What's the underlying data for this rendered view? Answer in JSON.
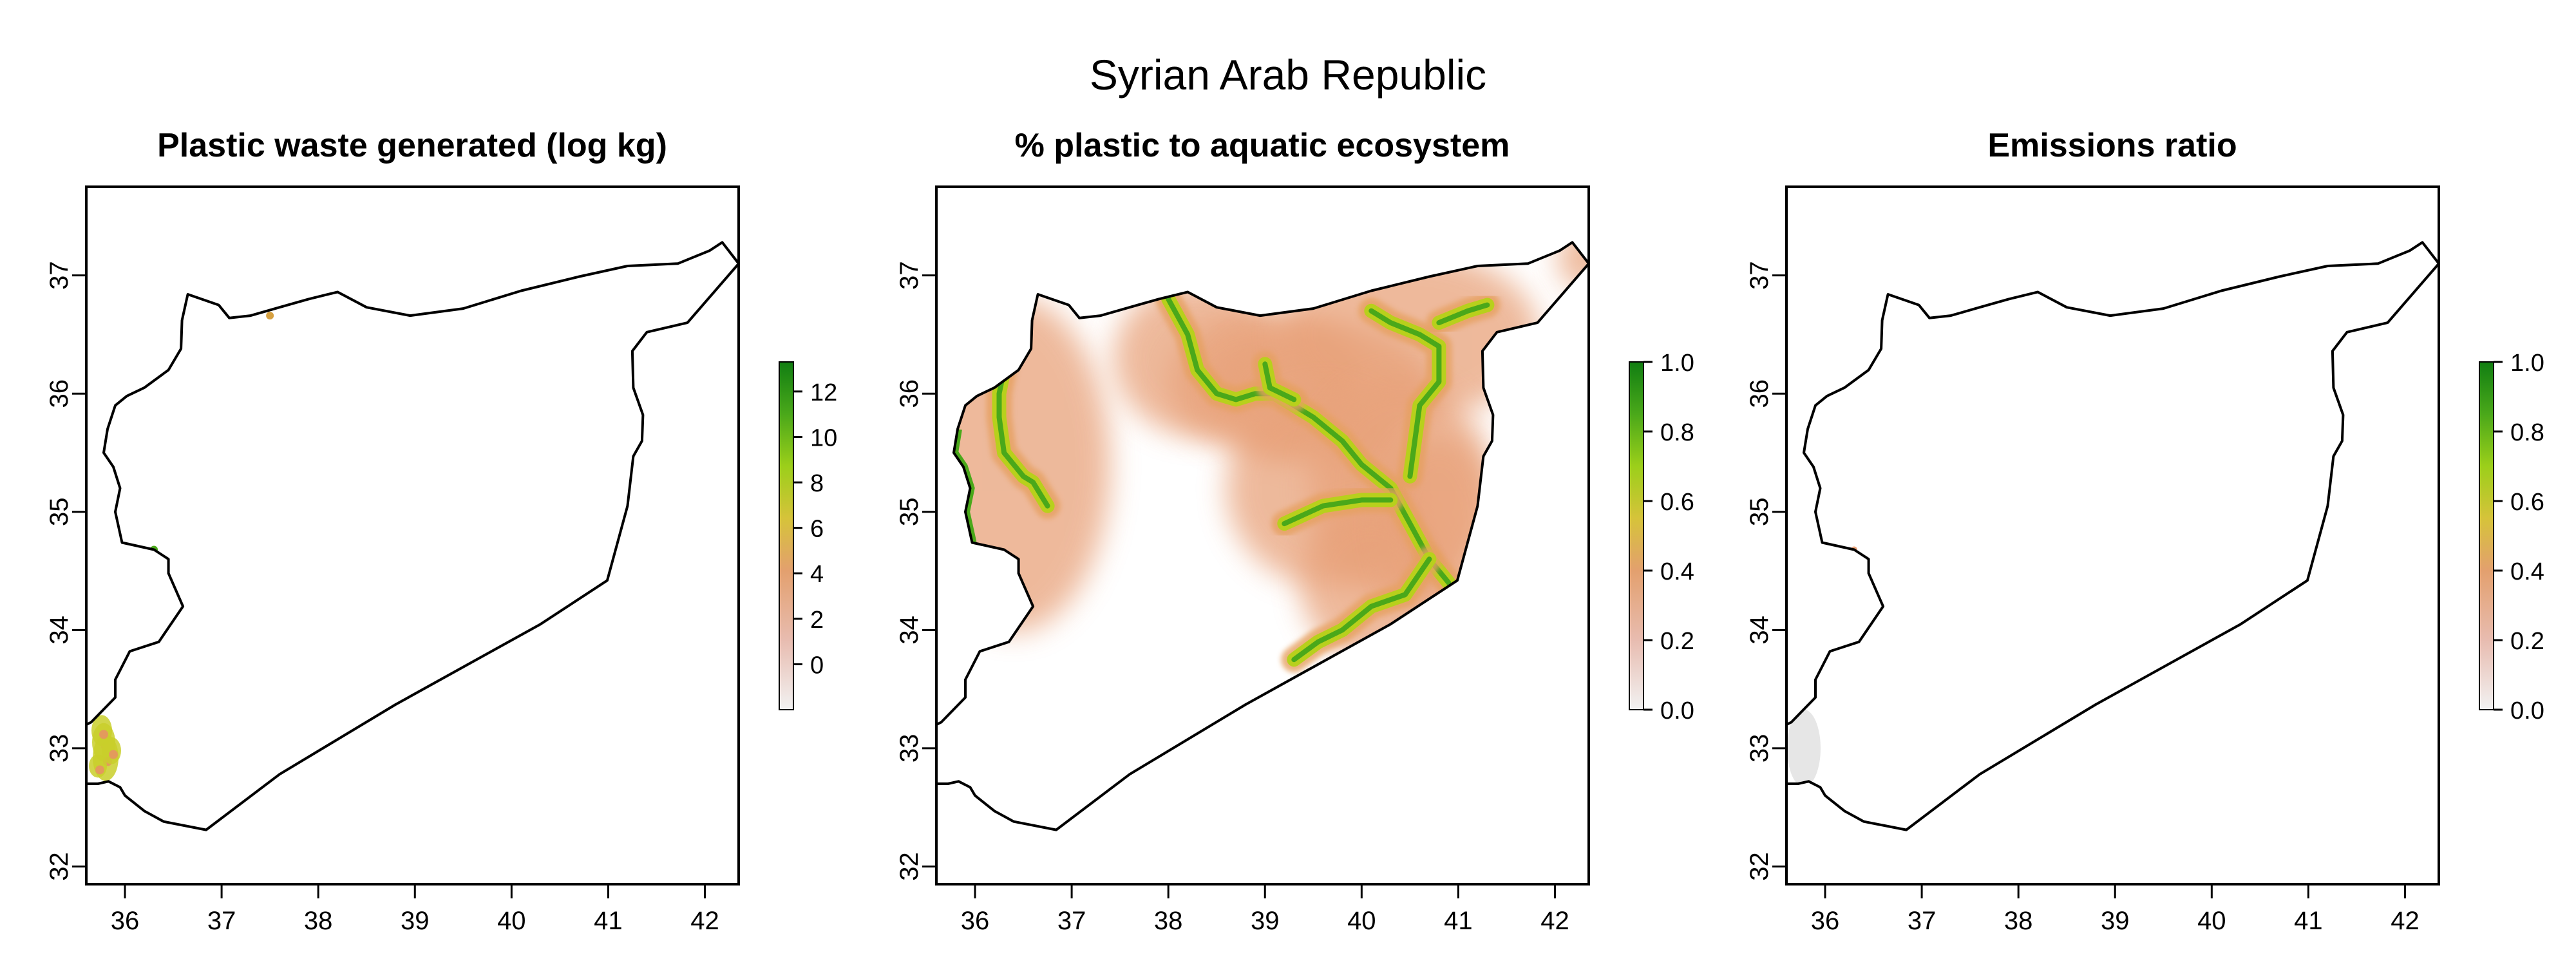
{
  "figure": {
    "title": "Syrian Arab Republic"
  },
  "panels": [
    {
      "title": "Plastic waste generated (log kg)",
      "x_ticks": [
        "36",
        "37",
        "38",
        "39",
        "40",
        "41",
        "42"
      ],
      "y_ticks": [
        "32",
        "33",
        "34",
        "35",
        "36",
        "37"
      ],
      "legend": {
        "ticks": [
          "0",
          "2",
          "4",
          "6",
          "8",
          "10",
          "12"
        ],
        "min": -2,
        "max": 13.3
      }
    },
    {
      "title": "% plastic to aquatic ecosystem",
      "x_ticks": [
        "36",
        "37",
        "38",
        "39",
        "40",
        "41",
        "42"
      ],
      "y_ticks": [
        "32",
        "33",
        "34",
        "35",
        "36",
        "37"
      ],
      "legend": {
        "ticks": [
          "0.0",
          "0.2",
          "0.4",
          "0.6",
          "0.8",
          "1.0"
        ],
        "min": 0,
        "max": 1
      }
    },
    {
      "title": "Emissions ratio",
      "x_ticks": [
        "36",
        "37",
        "38",
        "39",
        "40",
        "41",
        "42"
      ],
      "y_ticks": [
        "32",
        "33",
        "34",
        "35",
        "36",
        "37"
      ],
      "legend": {
        "ticks": [
          "0.0",
          "0.2",
          "0.4",
          "0.6",
          "0.8",
          "1.0"
        ],
        "min": 0,
        "max": 1
      }
    }
  ],
  "map": {
    "lon_range": [
      35.6,
      42.35
    ],
    "lat_range": [
      31.85,
      37.75
    ],
    "boundary_lonlat": [
      [
        35.72,
        32.7
      ],
      [
        35.83,
        32.72
      ],
      [
        35.95,
        32.67
      ],
      [
        36.0,
        32.6
      ],
      [
        36.2,
        32.47
      ],
      [
        36.4,
        32.38
      ],
      [
        36.84,
        32.31
      ],
      [
        37.6,
        32.78
      ],
      [
        38.8,
        33.37
      ],
      [
        40.3,
        34.05
      ],
      [
        40.99,
        34.42
      ],
      [
        41.2,
        35.05
      ],
      [
        41.26,
        35.47
      ],
      [
        41.35,
        35.6
      ],
      [
        41.36,
        35.82
      ],
      [
        41.26,
        36.05
      ],
      [
        41.25,
        36.36
      ],
      [
        41.4,
        36.52
      ],
      [
        41.82,
        36.6
      ],
      [
        42.35,
        37.1
      ],
      [
        42.18,
        37.28
      ],
      [
        42.05,
        37.21
      ],
      [
        41.72,
        37.1
      ],
      [
        41.2,
        37.08
      ],
      [
        40.7,
        36.99
      ],
      [
        40.1,
        36.87
      ],
      [
        39.5,
        36.72
      ],
      [
        38.95,
        36.66
      ],
      [
        38.5,
        36.73
      ],
      [
        38.2,
        36.86
      ],
      [
        37.9,
        36.8
      ],
      [
        37.6,
        36.73
      ],
      [
        37.3,
        36.66
      ],
      [
        37.08,
        36.64
      ],
      [
        36.97,
        36.75
      ],
      [
        36.65,
        36.84
      ],
      [
        36.59,
        36.62
      ],
      [
        36.58,
        36.38
      ],
      [
        36.45,
        36.2
      ],
      [
        36.2,
        36.05
      ],
      [
        36.02,
        35.98
      ],
      [
        35.9,
        35.9
      ],
      [
        35.82,
        35.7
      ],
      [
        35.78,
        35.5
      ],
      [
        35.88,
        35.38
      ],
      [
        35.95,
        35.2
      ],
      [
        35.9,
        35.0
      ],
      [
        35.97,
        34.74
      ],
      [
        36.3,
        34.68
      ],
      [
        36.45,
        34.6
      ],
      [
        36.45,
        34.48
      ],
      [
        36.6,
        34.2
      ],
      [
        36.35,
        33.9
      ],
      [
        36.05,
        33.82
      ],
      [
        35.9,
        33.58
      ],
      [
        35.9,
        33.43
      ],
      [
        35.65,
        33.22
      ],
      [
        35.6,
        33.2
      ],
      [
        35.6,
        32.7
      ],
      [
        35.72,
        32.7
      ]
    ],
    "rivers_lonlat": [
      [
        [
          38.0,
          36.8
        ],
        [
          38.2,
          36.5
        ],
        [
          38.3,
          36.2
        ],
        [
          38.5,
          36.0
        ],
        [
          38.7,
          35.95
        ],
        [
          38.9,
          36.0
        ],
        [
          39.1,
          36.0
        ],
        [
          39.5,
          35.8
        ],
        [
          39.8,
          35.6
        ],
        [
          40.0,
          35.4
        ],
        [
          40.3,
          35.2
        ],
        [
          40.5,
          34.9
        ],
        [
          40.7,
          34.6
        ],
        [
          40.9,
          34.4
        ]
      ],
      [
        [
          40.1,
          36.7
        ],
        [
          40.3,
          36.6
        ],
        [
          40.6,
          36.5
        ],
        [
          40.8,
          36.4
        ],
        [
          40.8,
          36.1
        ],
        [
          40.6,
          35.9
        ],
        [
          40.55,
          35.6
        ],
        [
          40.5,
          35.3
        ]
      ],
      [
        [
          40.8,
          36.6
        ],
        [
          41.1,
          36.7
        ],
        [
          41.3,
          36.75
        ]
      ],
      [
        [
          39.0,
          36.25
        ],
        [
          39.05,
          36.05
        ],
        [
          39.3,
          35.95
        ]
      ],
      [
        [
          39.2,
          34.9
        ],
        [
          39.6,
          35.05
        ],
        [
          40.0,
          35.1
        ],
        [
          40.3,
          35.1
        ]
      ],
      [
        [
          40.7,
          34.6
        ],
        [
          40.45,
          34.3
        ],
        [
          40.1,
          34.2
        ],
        [
          39.8,
          34.0
        ],
        [
          39.55,
          33.9
        ],
        [
          39.3,
          33.75
        ]
      ],
      [
        [
          36.3,
          36.2
        ],
        [
          36.25,
          36.0
        ],
        [
          36.25,
          35.8
        ],
        [
          36.3,
          35.5
        ],
        [
          36.5,
          35.3
        ],
        [
          36.6,
          35.25
        ],
        [
          36.75,
          35.05
        ]
      ]
    ]
  }
}
